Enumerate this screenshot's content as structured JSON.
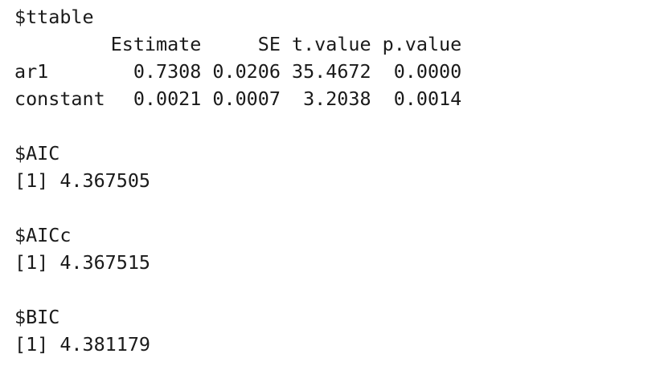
{
  "console": {
    "ttable": {
      "label": "$ttable",
      "headers": [
        "",
        "Estimate",
        "SE",
        "t.value",
        "p.value"
      ],
      "rows": [
        {
          "name": "ar1",
          "estimate": "0.7308",
          "se": "0.0206",
          "t_value": "35.4672",
          "p_value": "0.0000"
        },
        {
          "name": "constant",
          "estimate": "0.0021",
          "se": "0.0007",
          "t_value": "3.2038",
          "p_value": "0.0014"
        }
      ]
    },
    "aic": {
      "label": "$AIC",
      "value": "[1] 4.367505"
    },
    "aicc": {
      "label": "$AICc",
      "value": "[1] 4.367515"
    },
    "bic": {
      "label": "$BIC",
      "value": "[1] 4.381179"
    }
  }
}
